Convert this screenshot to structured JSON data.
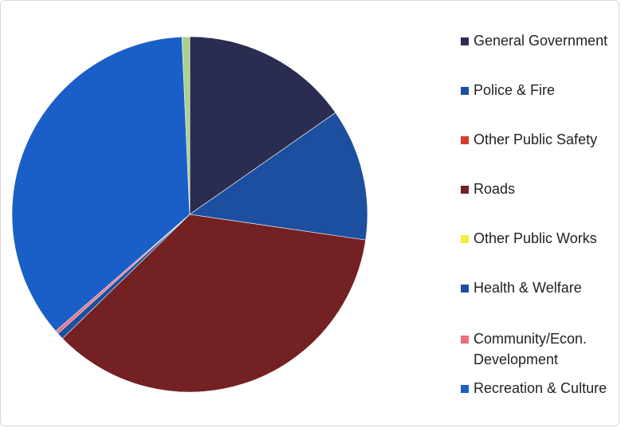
{
  "chart_data": {
    "type": "pie",
    "title": "",
    "legend_position": "right",
    "slices": [
      {
        "name": "General Government",
        "value": 15.3,
        "color": "#2a2d4f"
      },
      {
        "name": "Police & Fire",
        "value": 12.0,
        "color": "#1d4fa0"
      },
      {
        "name": "Other Public Safety",
        "value": 0.0,
        "color": "#d83a2e"
      },
      {
        "name": "Roads",
        "value": 35.4,
        "color": "#742124"
      },
      {
        "name": "Other Public Works",
        "value": 0.0,
        "color": "#f2ef3a"
      },
      {
        "name": "Health & Welfare",
        "value": 0.6,
        "color": "#1d4fa0"
      },
      {
        "name": "Community/Econ. Development",
        "value": 0.3,
        "color": "#f06d7c"
      },
      {
        "name": "Recreation & Culture",
        "value": 35.7,
        "color": "#1a5fc8"
      },
      {
        "name": "",
        "value": 0.7,
        "color": "#a9d18e"
      }
    ]
  },
  "legend": {
    "items": [
      {
        "label": "General Government",
        "color": "#2a2d4f"
      },
      {
        "label": "Police & Fire",
        "color": "#1d4fa0"
      },
      {
        "label": "Other Public Safety",
        "color": "#d83a2e"
      },
      {
        "label": "Roads",
        "color": "#742124"
      },
      {
        "label": "Other Public Works",
        "color": "#f2ef3a"
      },
      {
        "label": "Health & Welfare",
        "color": "#1d4fa0"
      },
      {
        "label": "Community/Econ. Development",
        "color": "#f06d7c"
      },
      {
        "label": "Recreation & Culture",
        "color": "#1a5fc8"
      }
    ]
  }
}
